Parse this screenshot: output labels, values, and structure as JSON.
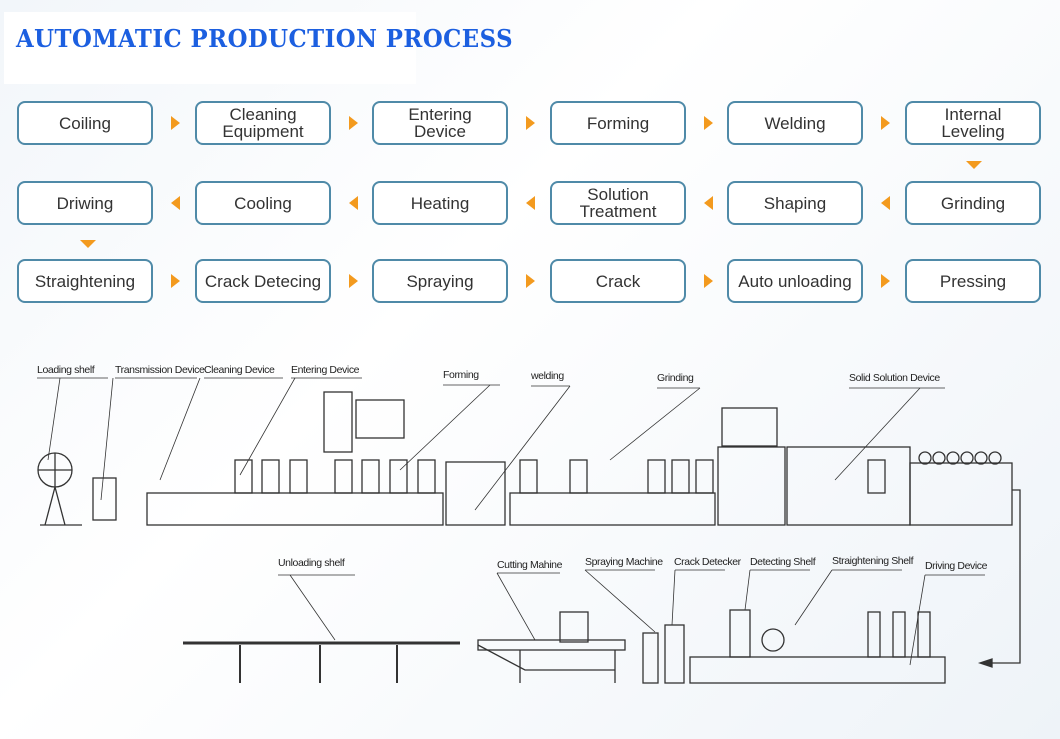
{
  "title": "AUTOMATIC PRODUCTION PROCESS",
  "process_steps": {
    "row1": [
      "Coiling",
      "Cleaning\nEquipment",
      "Entering\nDevice",
      "Forming",
      "Welding",
      "Internal\nLeveling"
    ],
    "row2": [
      "Driwing",
      "Cooling",
      "Heating",
      "Solution\nTreatment",
      "Shaping",
      "Grinding"
    ],
    "row3": [
      "Straightening",
      "Crack Detecing",
      "Spraying",
      "Crack",
      "Auto unloading",
      "Pressing"
    ]
  },
  "arrow_color": "#f39a1e",
  "box_border_color": "#4f8aa8",
  "title_color": "#1c5fe0",
  "diagram_labels": {
    "top": [
      "Loading shelf",
      "Transmission Device",
      "Cleaning Device",
      "Entering Device",
      "Forming",
      "welding",
      "Grinding",
      "Solid Solution Device"
    ],
    "bottom": [
      "Unloading shelf",
      "Cutting Mahine",
      "Spraying Machine",
      "Crack Detecker",
      "Detecting Shelf",
      "Straightening Shelf",
      "Driving Device"
    ]
  }
}
